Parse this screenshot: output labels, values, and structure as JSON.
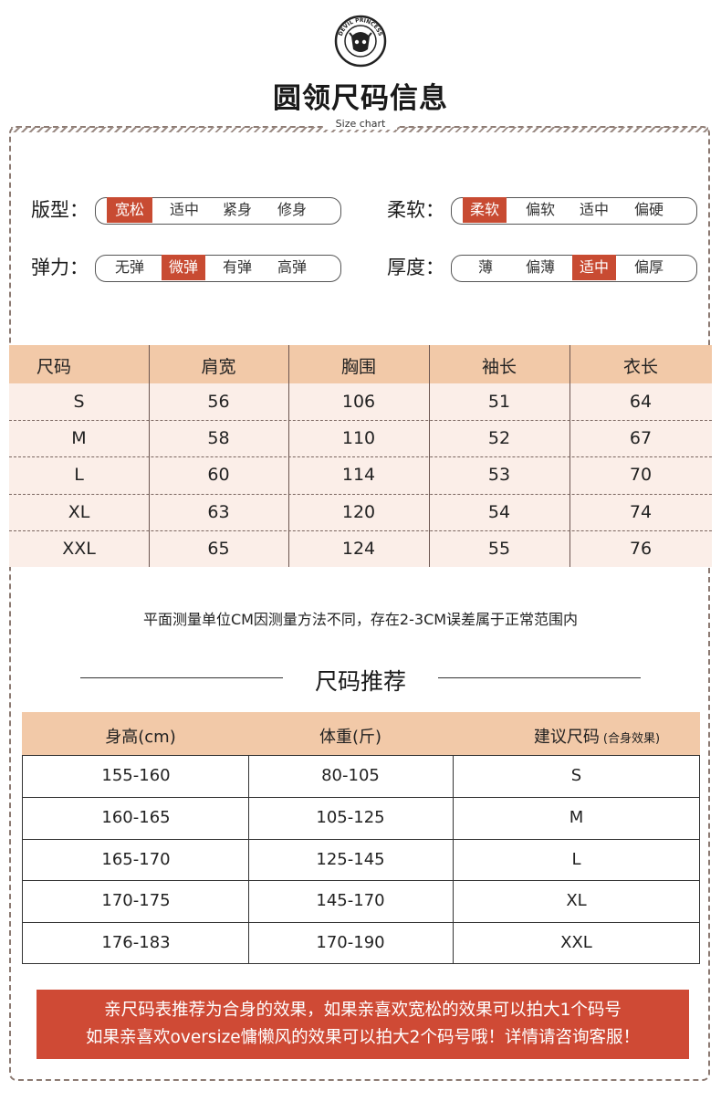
{
  "header": {
    "title": "圆领尺码信息",
    "subtitle": "Size chart",
    "logo_text": "DEVIL PRINCESS"
  },
  "attributes": [
    {
      "label": "版型：",
      "options": [
        "宽松",
        "适中",
        "紧身",
        "修身"
      ],
      "selected": 0
    },
    {
      "label": "柔软：",
      "options": [
        "柔软",
        "偏软",
        "适中",
        "偏硬"
      ],
      "selected": 0
    },
    {
      "label": "弹力：",
      "options": [
        "无弹",
        "微弹",
        "有弹",
        "高弹"
      ],
      "selected": 1
    },
    {
      "label": "厚度：",
      "options": [
        "薄",
        "偏薄",
        "适中",
        "偏厚"
      ],
      "selected": 2
    }
  ],
  "size_table": {
    "headers": [
      "尺码",
      "肩宽",
      "胸围",
      "袖长",
      "衣长"
    ],
    "rows": [
      [
        "S",
        "56",
        "106",
        "51",
        "64"
      ],
      [
        "M",
        "58",
        "110",
        "52",
        "67"
      ],
      [
        "L",
        "60",
        "114",
        "53",
        "70"
      ],
      [
        "XL",
        "63",
        "120",
        "54",
        "74"
      ],
      [
        "XXL",
        "65",
        "124",
        "55",
        "76"
      ]
    ]
  },
  "note": "平面测量单位CM因测量方法不同，存在2-3CM误差属于正常范围内",
  "recommend": {
    "title": "尺码推荐",
    "headers": [
      "身高(cm)",
      "体重(斤)",
      "建议尺码"
    ],
    "header_sub": "(合身效果)",
    "rows": [
      [
        "155-160",
        "80-105",
        "S"
      ],
      [
        "160-165",
        "105-125",
        "M"
      ],
      [
        "165-170",
        "125-145",
        "L"
      ],
      [
        "170-175",
        "145-170",
        "XL"
      ],
      [
        "176-183",
        "170-190",
        "XXL"
      ]
    ]
  },
  "banner": {
    "line1": "亲尺码表推荐为合身的效果，如果亲喜欢宽松的效果可以拍大1个码号",
    "line2": "如果亲喜欢oversize慵懒风的效果可以拍大2个码号哦！详情请咨询客服！"
  },
  "colors": {
    "accent": "#c84b32",
    "header_bg": "#f2c9a8",
    "row_bg": "#fbeee8",
    "banner_bg": "#cf4a35"
  }
}
